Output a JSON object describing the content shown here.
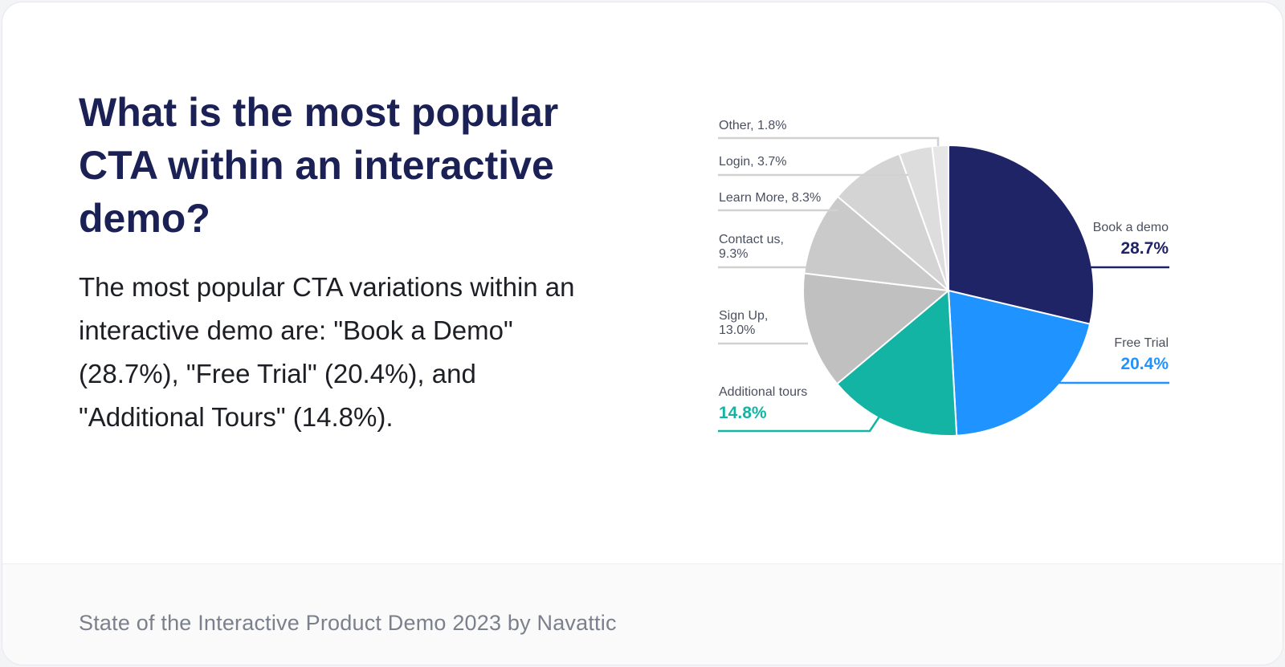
{
  "title": "What is the most popular CTA within an interactive demo?",
  "description": "The most popular CTA variations within an interactive demo are: \"Book a Demo\" (28.7%), \"Free Trial\" (20.4%), and \"Additional Tours\" (14.8%).",
  "footer": "State of the Interactive Product Demo 2023 by Navattic",
  "chart_data": {
    "type": "pie",
    "title": "What is the most popular CTA within an interactive demo?",
    "unit": "%",
    "slices": [
      {
        "name": "Book a demo",
        "value": 28.7,
        "label": "Book a demo",
        "value_label": "28.7%",
        "color": "#1e2466"
      },
      {
        "name": "Free Trial",
        "value": 20.4,
        "label": "Free Trial",
        "value_label": "20.4%",
        "color": "#1f93ff"
      },
      {
        "name": "Additional tours",
        "value": 14.8,
        "label": "Additional tours",
        "value_label": "14.8%",
        "color": "#14b4a5"
      },
      {
        "name": "Sign Up",
        "value": 13.0,
        "label": "Sign Up,",
        "value_label": "13.0%",
        "color": "#c0c0c0"
      },
      {
        "name": "Contact us",
        "value": 9.3,
        "label": "Contact us,",
        "value_label": "9.3%",
        "color": "#cacaca"
      },
      {
        "name": "Learn More",
        "value": 8.3,
        "label": "Learn More, 8.3%",
        "color": "#d4d4d4"
      },
      {
        "name": "Login",
        "value": 3.7,
        "label": "Login, 3.7%",
        "color": "#dddddd"
      },
      {
        "name": "Other",
        "value": 1.8,
        "label": "Other, 1.8%",
        "color": "#e6e6e6"
      }
    ]
  }
}
